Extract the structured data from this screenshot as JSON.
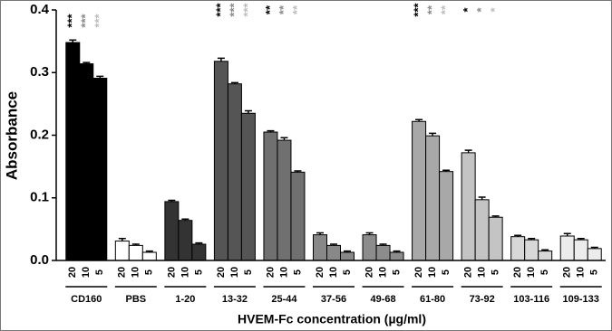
{
  "chart_data": {
    "type": "grouped-bar",
    "y_label": "Absorbance",
    "x_label": "HVEM-Fc concentration (µg/ml)",
    "categories": [
      "CD160",
      "PBS",
      "1-20",
      "13-32",
      "25-44",
      "37-56",
      "49-68",
      "61-80",
      "73-92",
      "103-116",
      "109-133"
    ],
    "group_colors": [
      "#000000",
      "#ffffff",
      "#333333",
      "#555555",
      "#707070",
      "#888888",
      "#8c8c8c",
      "#a8a8a8",
      "#c4c4c4",
      "#d8d8d8",
      "#ececec"
    ],
    "series": [
      {
        "name": "20",
        "star_color": "#000000",
        "values": [
          0.348,
          0.031,
          0.094,
          0.318,
          0.205,
          0.041,
          0.041,
          0.222,
          0.172,
          0.038,
          0.039
        ],
        "errors": [
          0.004,
          0.004,
          0.002,
          0.005,
          0.002,
          0.003,
          0.003,
          0.003,
          0.004,
          0.002,
          0.004
        ],
        "stars": [
          "***",
          null,
          null,
          "***",
          "**",
          null,
          null,
          "***",
          "*",
          null,
          null
        ]
      },
      {
        "name": "10",
        "star_color": "#8a8a8a",
        "values": [
          0.314,
          0.024,
          0.064,
          0.282,
          0.192,
          0.024,
          0.024,
          0.199,
          0.097,
          0.033,
          0.033
        ],
        "errors": [
          0.002,
          0.002,
          0.002,
          0.002,
          0.004,
          0.002,
          0.002,
          0.004,
          0.004,
          0.002,
          0.002
        ],
        "stars": [
          "***",
          null,
          null,
          "***",
          "**",
          null,
          null,
          "**",
          "*",
          null,
          null
        ]
      },
      {
        "name": "5",
        "star_color": "#bdbdbd",
        "values": [
          0.291,
          0.013,
          0.026,
          0.235,
          0.141,
          0.013,
          0.013,
          0.142,
          0.069,
          0.015,
          0.019
        ],
        "errors": [
          0.003,
          0.002,
          0.002,
          0.004,
          0.002,
          0.002,
          0.002,
          0.002,
          0.002,
          0.002,
          0.002
        ],
        "stars": [
          "***",
          null,
          null,
          "***",
          "**",
          null,
          null,
          "**",
          "*",
          null,
          null
        ]
      }
    ],
    "ylim": [
      0,
      0.4
    ],
    "yticks": [
      {
        "value": 0,
        "label": "0.0"
      },
      0.1,
      0.2,
      0.3,
      0.4
    ]
  }
}
